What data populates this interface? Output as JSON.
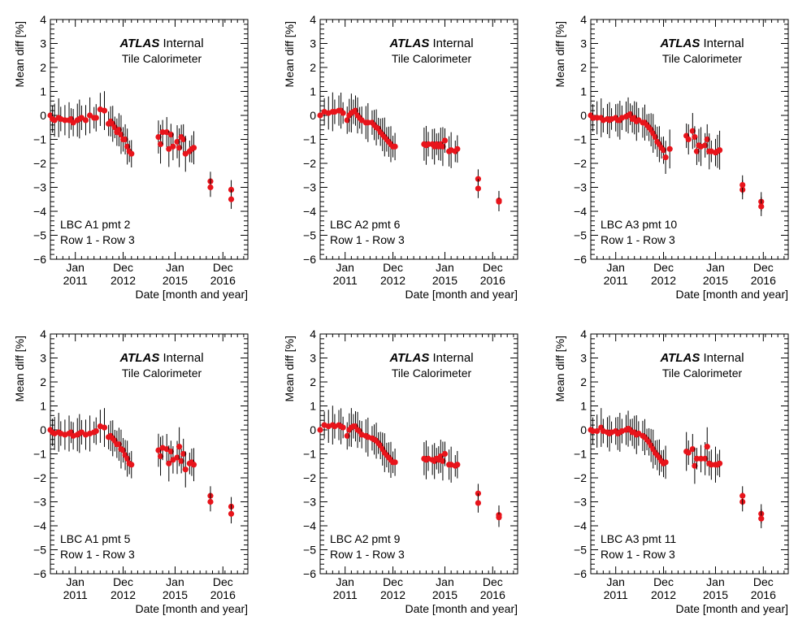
{
  "figure": {
    "ylabel": "Mean diff [%]",
    "xlabel": "Date [month and year]",
    "brand": "ATLAS",
    "brand_suffix": "Internal",
    "subtitle": "Tile Calorimeter",
    "yticks": [
      "4",
      "3",
      "2",
      "1",
      "0",
      "−1",
      "−2",
      "−3",
      "−4",
      "−5",
      "−6"
    ],
    "xticks": [
      {
        "month": "Jan",
        "year": "2011"
      },
      {
        "month": "Dec",
        "year": "2012"
      },
      {
        "month": "Jan",
        "year": "2015"
      },
      {
        "month": "Dec",
        "year": "2016"
      }
    ],
    "colors": {
      "marker": "#e8141b",
      "errorbar": "#000000",
      "axis": "#000000"
    }
  },
  "chart_data": [
    {
      "type": "scatter",
      "panel_label": "LBC A1 pmt 2",
      "row_label": "Row 1 - Row 3",
      "ylabel": "Mean diff [%]",
      "xlabel": "Date [month and year]",
      "ylim": [
        -6,
        4
      ],
      "x_unit": "months since Jan 2010",
      "points": [
        [
          0,
          0.0
        ],
        [
          1,
          -0.15
        ],
        [
          2,
          -0.2
        ],
        [
          4,
          -0.1
        ],
        [
          5,
          -0.15
        ],
        [
          7,
          -0.2
        ],
        [
          9,
          -0.2
        ],
        [
          10,
          -0.15
        ],
        [
          11,
          -0.3
        ],
        [
          13,
          -0.2
        ],
        [
          14,
          -0.15
        ],
        [
          15,
          -0.1
        ],
        [
          17,
          -0.2
        ],
        [
          19,
          0.0
        ],
        [
          21,
          -0.1
        ],
        [
          22,
          -0.1
        ],
        [
          24,
          0.25
        ],
        [
          26,
          0.2
        ],
        [
          28,
          -0.35
        ],
        [
          29,
          -0.25
        ],
        [
          30,
          -0.35
        ],
        [
          31,
          -0.5
        ],
        [
          32,
          -0.7
        ],
        [
          33,
          -0.6
        ],
        [
          34,
          -0.8
        ],
        [
          35,
          -1.0
        ],
        [
          36,
          -1.0
        ],
        [
          37,
          -1.3
        ],
        [
          38,
          -1.5
        ],
        [
          39,
          -1.6
        ],
        [
          52,
          -0.9
        ],
        [
          53,
          -1.2
        ],
        [
          54,
          -0.7
        ],
        [
          56,
          -0.7
        ],
        [
          57,
          -1.4
        ],
        [
          58,
          -0.8
        ],
        [
          59,
          -1.3
        ],
        [
          61,
          -1.1
        ],
        [
          62,
          -1.35
        ],
        [
          63,
          -0.9
        ],
        [
          64,
          -1.0
        ],
        [
          65,
          -1.6
        ],
        [
          67,
          -1.5
        ],
        [
          68,
          -1.4
        ],
        [
          69,
          -1.35
        ],
        [
          77,
          -2.75
        ],
        [
          77,
          -3.0
        ],
        [
          87,
          -3.1
        ],
        [
          87,
          -3.5
        ]
      ]
    },
    {
      "type": "scatter",
      "panel_label": "LBC A2 pmt 6",
      "row_label": "Row 1 - Row 3",
      "ylabel": "Mean diff [%]",
      "xlabel": "Date [month and year]",
      "ylim": [
        -6,
        4
      ],
      "x_unit": "months since Jan 2010",
      "points": [
        [
          0,
          0.0
        ],
        [
          2,
          0.15
        ],
        [
          4,
          0.1
        ],
        [
          6,
          0.15
        ],
        [
          7,
          0.15
        ],
        [
          9,
          0.2
        ],
        [
          10,
          0.2
        ],
        [
          11,
          0.1
        ],
        [
          13,
          -0.2
        ],
        [
          14,
          0.0
        ],
        [
          15,
          0.1
        ],
        [
          16,
          0.15
        ],
        [
          17,
          0.2
        ],
        [
          18,
          0.0
        ],
        [
          19,
          -0.1
        ],
        [
          20,
          -0.2
        ],
        [
          22,
          -0.3
        ],
        [
          23,
          -0.3
        ],
        [
          25,
          -0.3
        ],
        [
          26,
          -0.4
        ],
        [
          27,
          -0.5
        ],
        [
          28,
          -0.55
        ],
        [
          29,
          -0.7
        ],
        [
          30,
          -0.8
        ],
        [
          31,
          -0.9
        ],
        [
          32,
          -1.0
        ],
        [
          33,
          -1.1
        ],
        [
          34,
          -1.2
        ],
        [
          35,
          -1.3
        ],
        [
          36,
          -1.3
        ],
        [
          50,
          -1.2
        ],
        [
          51,
          -1.25
        ],
        [
          52,
          -1.2
        ],
        [
          54,
          -1.2
        ],
        [
          55,
          -1.3
        ],
        [
          56,
          -1.2
        ],
        [
          57,
          -1.3
        ],
        [
          58,
          -1.2
        ],
        [
          59,
          -1.3
        ],
        [
          60,
          -1.05
        ],
        [
          62,
          -1.5
        ],
        [
          63,
          -1.45
        ],
        [
          65,
          -1.5
        ],
        [
          66,
          -1.4
        ],
        [
          76,
          -2.65
        ],
        [
          76,
          -3.05
        ],
        [
          86,
          -3.55
        ],
        [
          86,
          -3.6
        ]
      ]
    },
    {
      "type": "scatter",
      "panel_label": "LBC A3 pmt 10",
      "row_label": "Row 1 - Row 3",
      "ylabel": "Mean diff [%]",
      "xlabel": "Date [month and year]",
      "ylim": [
        -6,
        4
      ],
      "x_unit": "months since Jan 2010",
      "points": [
        [
          0,
          0.0
        ],
        [
          1,
          -0.1
        ],
        [
          3,
          -0.1
        ],
        [
          5,
          -0.1
        ],
        [
          6,
          -0.2
        ],
        [
          8,
          -0.15
        ],
        [
          9,
          -0.2
        ],
        [
          10,
          -0.15
        ],
        [
          12,
          -0.1
        ],
        [
          13,
          -0.2
        ],
        [
          14,
          -0.2
        ],
        [
          15,
          -0.1
        ],
        [
          17,
          -0.05
        ],
        [
          18,
          0.0
        ],
        [
          19,
          0.05
        ],
        [
          20,
          -0.15
        ],
        [
          21,
          -0.1
        ],
        [
          22,
          -0.25
        ],
        [
          23,
          -0.2
        ],
        [
          25,
          -0.3
        ],
        [
          26,
          -0.3
        ],
        [
          27,
          -0.4
        ],
        [
          28,
          -0.5
        ],
        [
          29,
          -0.6
        ],
        [
          30,
          -0.75
        ],
        [
          31,
          -0.9
        ],
        [
          32,
          -1.1
        ],
        [
          33,
          -1.2
        ],
        [
          34,
          -1.35
        ],
        [
          35,
          -1.45
        ],
        [
          36,
          -1.75
        ],
        [
          38,
          -1.4
        ],
        [
          46,
          -0.85
        ],
        [
          47,
          -1.0
        ],
        [
          49,
          -0.65
        ],
        [
          50,
          -0.9
        ],
        [
          51,
          -1.5
        ],
        [
          52,
          -1.25
        ],
        [
          53,
          -1.3
        ],
        [
          55,
          -1.25
        ],
        [
          56,
          -1.0
        ],
        [
          57,
          -1.5
        ],
        [
          58,
          -1.5
        ],
        [
          60,
          -1.55
        ],
        [
          61,
          -1.5
        ],
        [
          62,
          -1.45
        ],
        [
          73,
          -3.1
        ],
        [
          73,
          -2.9
        ],
        [
          82,
          -3.6
        ],
        [
          82,
          -3.8
        ]
      ]
    },
    {
      "type": "scatter",
      "panel_label": "LBC A1 pmt 5",
      "row_label": "Row 1 - Row 3",
      "ylabel": "Mean diff [%]",
      "xlabel": "Date [month and year]",
      "ylim": [
        -6,
        4
      ],
      "x_unit": "months since Jan 2010",
      "points": [
        [
          0,
          0.0
        ],
        [
          1,
          -0.1
        ],
        [
          2,
          -0.15
        ],
        [
          4,
          -0.1
        ],
        [
          5,
          -0.15
        ],
        [
          7,
          -0.2
        ],
        [
          9,
          -0.15
        ],
        [
          10,
          -0.1
        ],
        [
          11,
          -0.25
        ],
        [
          13,
          -0.2
        ],
        [
          14,
          -0.15
        ],
        [
          15,
          -0.1
        ],
        [
          17,
          -0.2
        ],
        [
          19,
          -0.15
        ],
        [
          21,
          -0.1
        ],
        [
          22,
          -0.05
        ],
        [
          24,
          0.15
        ],
        [
          26,
          0.1
        ],
        [
          28,
          -0.3
        ],
        [
          29,
          -0.25
        ],
        [
          30,
          -0.35
        ],
        [
          31,
          -0.45
        ],
        [
          32,
          -0.6
        ],
        [
          33,
          -0.6
        ],
        [
          34,
          -0.8
        ],
        [
          35,
          -0.85
        ],
        [
          36,
          -1.05
        ],
        [
          37,
          -1.2
        ],
        [
          38,
          -1.4
        ],
        [
          39,
          -1.45
        ],
        [
          52,
          -0.85
        ],
        [
          53,
          -1.1
        ],
        [
          54,
          -0.75
        ],
        [
          56,
          -0.8
        ],
        [
          57,
          -1.4
        ],
        [
          58,
          -0.9
        ],
        [
          59,
          -1.25
        ],
        [
          61,
          -1.15
        ],
        [
          62,
          -0.7
        ],
        [
          63,
          -1.3
        ],
        [
          64,
          -1.0
        ],
        [
          65,
          -1.65
        ],
        [
          67,
          -1.4
        ],
        [
          68,
          -1.35
        ],
        [
          69,
          -1.45
        ],
        [
          77,
          -2.75
        ],
        [
          77,
          -3.0
        ],
        [
          87,
          -3.2
        ],
        [
          87,
          -3.5
        ]
      ]
    },
    {
      "type": "scatter",
      "panel_label": "LBC A2 pmt 9",
      "row_label": "Row 1 - Row 3",
      "ylabel": "Mean diff [%]",
      "xlabel": "Date [month and year]",
      "ylim": [
        -6,
        4
      ],
      "x_unit": "months since Jan 2010",
      "points": [
        [
          0,
          0.0
        ],
        [
          2,
          0.2
        ],
        [
          4,
          0.15
        ],
        [
          6,
          0.2
        ],
        [
          7,
          0.15
        ],
        [
          9,
          0.2
        ],
        [
          10,
          0.15
        ],
        [
          11,
          0.1
        ],
        [
          13,
          -0.25
        ],
        [
          14,
          0.0
        ],
        [
          15,
          0.1
        ],
        [
          16,
          0.15
        ],
        [
          17,
          0.15
        ],
        [
          18,
          0.0
        ],
        [
          19,
          -0.05
        ],
        [
          20,
          -0.2
        ],
        [
          22,
          -0.25
        ],
        [
          23,
          -0.3
        ],
        [
          25,
          -0.35
        ],
        [
          26,
          -0.4
        ],
        [
          27,
          -0.45
        ],
        [
          28,
          -0.55
        ],
        [
          29,
          -0.65
        ],
        [
          30,
          -0.8
        ],
        [
          31,
          -0.95
        ],
        [
          32,
          -1.05
        ],
        [
          33,
          -1.15
        ],
        [
          34,
          -1.25
        ],
        [
          35,
          -1.35
        ],
        [
          36,
          -1.35
        ],
        [
          50,
          -1.2
        ],
        [
          51,
          -1.25
        ],
        [
          52,
          -1.2
        ],
        [
          54,
          -1.25
        ],
        [
          55,
          -1.3
        ],
        [
          56,
          -1.2
        ],
        [
          57,
          -1.25
        ],
        [
          58,
          -1.1
        ],
        [
          59,
          -1.3
        ],
        [
          60,
          -1.0
        ],
        [
          62,
          -1.45
        ],
        [
          63,
          -1.45
        ],
        [
          65,
          -1.5
        ],
        [
          66,
          -1.45
        ],
        [
          76,
          -2.65
        ],
        [
          76,
          -3.05
        ],
        [
          86,
          -3.55
        ],
        [
          86,
          -3.65
        ]
      ]
    },
    {
      "type": "scatter",
      "panel_label": "LBC A3 pmt 11",
      "row_label": "Row 1 - Row 3",
      "ylabel": "Mean diff [%]",
      "xlabel": "Date [month and year]",
      "ylim": [
        -6,
        4
      ],
      "x_unit": "months since Jan 2010",
      "points": [
        [
          0,
          0.0
        ],
        [
          1,
          -0.05
        ],
        [
          3,
          -0.05
        ],
        [
          5,
          0.1
        ],
        [
          6,
          -0.05
        ],
        [
          8,
          -0.1
        ],
        [
          9,
          -0.15
        ],
        [
          10,
          -0.1
        ],
        [
          12,
          -0.05
        ],
        [
          13,
          -0.15
        ],
        [
          14,
          -0.1
        ],
        [
          15,
          -0.05
        ],
        [
          17,
          0.0
        ],
        [
          18,
          0.05
        ],
        [
          19,
          0.0
        ],
        [
          20,
          -0.1
        ],
        [
          21,
          -0.1
        ],
        [
          22,
          -0.2
        ],
        [
          23,
          -0.15
        ],
        [
          25,
          -0.25
        ],
        [
          26,
          -0.3
        ],
        [
          27,
          -0.4
        ],
        [
          28,
          -0.5
        ],
        [
          29,
          -0.65
        ],
        [
          30,
          -0.8
        ],
        [
          31,
          -0.95
        ],
        [
          32,
          -1.05
        ],
        [
          33,
          -1.15
        ],
        [
          34,
          -1.3
        ],
        [
          35,
          -1.4
        ],
        [
          36,
          -1.35
        ],
        [
          46,
          -0.9
        ],
        [
          47,
          -0.95
        ],
        [
          49,
          -0.8
        ],
        [
          50,
          -1.5
        ],
        [
          51,
          -1.2
        ],
        [
          53,
          -1.2
        ],
        [
          55,
          -1.2
        ],
        [
          56,
          -0.7
        ],
        [
          57,
          -1.4
        ],
        [
          58,
          -1.45
        ],
        [
          60,
          -1.45
        ],
        [
          61,
          -1.45
        ],
        [
          62,
          -1.4
        ],
        [
          73,
          -3.0
        ],
        [
          73,
          -2.75
        ],
        [
          82,
          -3.5
        ],
        [
          82,
          -3.7
        ]
      ]
    }
  ]
}
